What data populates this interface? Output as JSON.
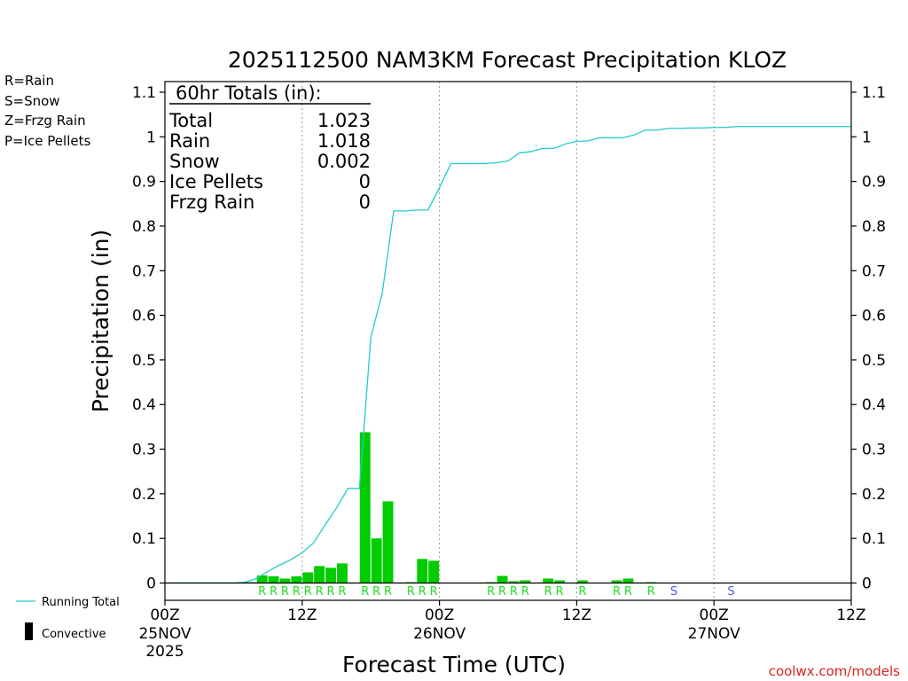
{
  "chart_data": {
    "type": "bar",
    "title": "2025112500 NAM3KM Forecast Precipitation KLOZ",
    "ylabel": "Precipitation (in)",
    "xlabel": "Forecast Time (UTC)",
    "ylim": [
      0,
      1.1
    ],
    "xlim_hours": [
      0,
      60
    ],
    "yticks": [
      "0",
      "0.1",
      "0.2",
      "0.3",
      "0.4",
      "0.5",
      "0.6",
      "0.7",
      "0.8",
      "0.9",
      "1",
      "1.1"
    ],
    "xticks": [
      {
        "hour": 0,
        "time": "00Z",
        "date": "25NOV",
        "year": "2025"
      },
      {
        "hour": 12,
        "time": "12Z",
        "date": "",
        "year": ""
      },
      {
        "hour": 24,
        "time": "00Z",
        "date": "26NOV",
        "year": ""
      },
      {
        "hour": 36,
        "time": "12Z",
        "date": "",
        "year": ""
      },
      {
        "hour": 48,
        "time": "00Z",
        "date": "27NOV",
        "year": ""
      },
      {
        "hour": 60,
        "time": "12Z",
        "date": "",
        "year": ""
      }
    ],
    "hourly_precip": [
      {
        "hour": 8,
        "value": 0.002
      },
      {
        "hour": 9,
        "value": 0.017
      },
      {
        "hour": 10,
        "value": 0.015
      },
      {
        "hour": 11,
        "value": 0.01
      },
      {
        "hour": 12,
        "value": 0.015
      },
      {
        "hour": 13,
        "value": 0.024
      },
      {
        "hour": 14,
        "value": 0.038
      },
      {
        "hour": 15,
        "value": 0.034
      },
      {
        "hour": 16,
        "value": 0.044
      },
      {
        "hour": 18,
        "value": 0.338
      },
      {
        "hour": 19,
        "value": 0.1
      },
      {
        "hour": 20,
        "value": 0.183
      },
      {
        "hour": 22,
        "value": 0.002
      },
      {
        "hour": 23,
        "value": 0.054
      },
      {
        "hour": 24,
        "value": 0.05
      },
      {
        "hour": 29,
        "value": 0.002
      },
      {
        "hour": 30,
        "value": 0.016
      },
      {
        "hour": 31,
        "value": 0.004
      },
      {
        "hour": 32,
        "value": 0.006
      },
      {
        "hour": 34,
        "value": 0.01
      },
      {
        "hour": 35,
        "value": 0.006
      },
      {
        "hour": 37,
        "value": 0.006
      },
      {
        "hour": 40,
        "value": 0.006
      },
      {
        "hour": 41,
        "value": 0.01
      },
      {
        "hour": 43,
        "value": 0.002
      }
    ],
    "running_total": {
      "name": "Running Total",
      "x": [
        0,
        6,
        7,
        8,
        9,
        10,
        11,
        12,
        13,
        14,
        15,
        16,
        17,
        18,
        19,
        20,
        21,
        22,
        23,
        24,
        25,
        26,
        27,
        28,
        29,
        30,
        31,
        32,
        33,
        34,
        35,
        36,
        37,
        38,
        39,
        40,
        41,
        42,
        43,
        44,
        45,
        46,
        47,
        48,
        49,
        50,
        60
      ],
      "y": [
        0,
        0,
        0.002,
        0.01,
        0.026,
        0.04,
        0.052,
        0.068,
        0.09,
        0.13,
        0.168,
        0.212,
        0.212,
        0.55,
        0.65,
        0.834,
        0.834,
        0.836,
        0.836,
        0.886,
        0.94,
        0.94,
        0.94,
        0.94,
        0.942,
        0.946,
        0.964,
        0.967,
        0.974,
        0.974,
        0.984,
        0.99,
        0.991,
        0.998,
        0.998,
        0.998,
        1.004,
        1.015,
        1.015,
        1.019,
        1.019,
        1.02,
        1.02,
        1.021,
        1.021,
        1.023,
        1.023
      ]
    },
    "ptype_markers": [
      {
        "hour": 9,
        "code": "R"
      },
      {
        "hour": 10,
        "code": "R"
      },
      {
        "hour": 11,
        "code": "R"
      },
      {
        "hour": 12,
        "code": "R"
      },
      {
        "hour": 13,
        "code": "R"
      },
      {
        "hour": 14,
        "code": "R"
      },
      {
        "hour": 15,
        "code": "R"
      },
      {
        "hour": 16,
        "code": "R"
      },
      {
        "hour": 18,
        "code": "R"
      },
      {
        "hour": 19,
        "code": "R"
      },
      {
        "hour": 20,
        "code": "R"
      },
      {
        "hour": 22,
        "code": "R"
      },
      {
        "hour": 23,
        "code": "R"
      },
      {
        "hour": 24,
        "code": "R"
      },
      {
        "hour": 29,
        "code": "R"
      },
      {
        "hour": 30,
        "code": "R"
      },
      {
        "hour": 31,
        "code": "R"
      },
      {
        "hour": 32,
        "code": "R"
      },
      {
        "hour": 34,
        "code": "R"
      },
      {
        "hour": 35,
        "code": "R"
      },
      {
        "hour": 37,
        "code": "R"
      },
      {
        "hour": 40,
        "code": "R"
      },
      {
        "hour": 41,
        "code": "R"
      },
      {
        "hour": 43,
        "code": "R"
      },
      {
        "hour": 45,
        "code": "S"
      },
      {
        "hour": 50,
        "code": "S"
      }
    ],
    "ptype_legend": [
      {
        "code": "R",
        "text": "R=Rain",
        "color": "#22dd22"
      },
      {
        "code": "S",
        "text": "S=Snow",
        "color": "#4455ee"
      },
      {
        "code": "Z",
        "text": "Z=Frzg Rain",
        "color": "#ff8833"
      },
      {
        "code": "P",
        "text": "P=Ice Pellets",
        "color": "#ff22aa"
      }
    ],
    "totals": {
      "heading": "60hr Totals (in):",
      "rows": [
        {
          "label": "Total",
          "value": "1.023"
        },
        {
          "label": "Rain",
          "value": "1.018"
        },
        {
          "label": "Snow",
          "value": "0.002"
        },
        {
          "label": "Ice Pellets",
          "value": "0"
        },
        {
          "label": "Frzg Rain",
          "value": "0"
        }
      ]
    },
    "series_legend": {
      "line_label": "Running Total",
      "bar_label": "Convective"
    },
    "colors": {
      "bar": "#00cc00",
      "line": "#22cccc",
      "grid": "#999999",
      "watermark": "#dd2222"
    },
    "watermark": "coolwx.com/models"
  }
}
